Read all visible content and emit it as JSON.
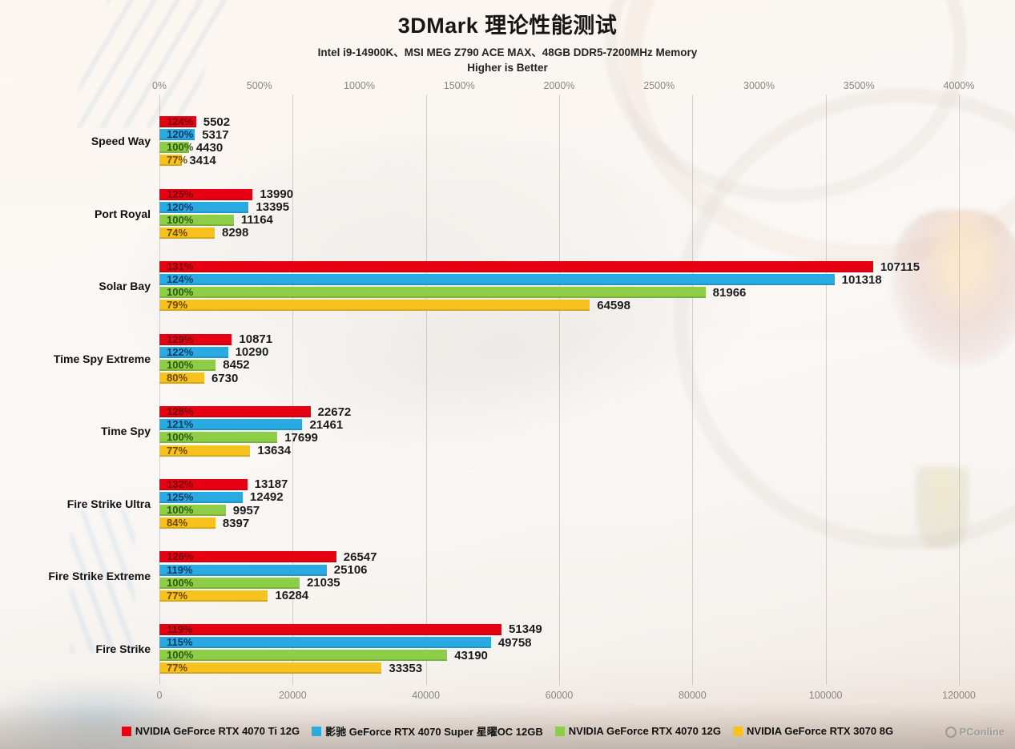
{
  "page": {
    "watermark": "PConline",
    "watermark_icon": "circle-logo"
  },
  "header": {
    "title": "3DMark 理论性能测试",
    "subtitle": "Intel i9-14900K、MSI MEG Z790 ACE MAX、48GB DDR5-7200MHz Memory",
    "note": "Higher is Better"
  },
  "chart_data": {
    "type": "bar",
    "orientation": "horizontal",
    "title": "3DMark 理论性能测试",
    "subtitle": "Intel i9-14900K、MSI MEG Z790 ACE MAX、48GB DDR5-7200MHz Memory",
    "note": "Higher is Better",
    "grid": true,
    "legend_position": "bottom",
    "categories": [
      "Speed Way",
      "Port Royal",
      "Solar Bay",
      "Time Spy Extreme",
      "Time Spy",
      "Fire Strike Ultra",
      "Fire Strike Extreme",
      "Fire Strike"
    ],
    "top_axis": {
      "ticks": [
        "0%",
        "500%",
        "1000%",
        "1500%",
        "2000%",
        "2500%",
        "3000%",
        "3500%",
        "4000%"
      ],
      "min": 0,
      "max": 4000
    },
    "bottom_axis": {
      "ticks": [
        0,
        20000,
        40000,
        60000,
        80000,
        100000,
        120000
      ],
      "min": 0,
      "max": 120000
    },
    "series": [
      {
        "name": "NVIDIA GeForce RTX 4070 Ti 12G",
        "color": "#e60012",
        "label_color": "#70060e",
        "values": [
          5502,
          13990,
          107115,
          10871,
          22672,
          13187,
          26547,
          51349
        ],
        "percents": [
          "124%",
          "125%",
          "131%",
          "129%",
          "128%",
          "132%",
          "126%",
          "119%"
        ]
      },
      {
        "name": "影驰 GeForce RTX 4070 Super 星曜OC 12GB",
        "color": "#29abe2",
        "label_color": "#0c3a66",
        "values": [
          5317,
          13395,
          101318,
          10290,
          21461,
          12492,
          25106,
          49758
        ],
        "percents": [
          "120%",
          "120%",
          "124%",
          "122%",
          "121%",
          "125%",
          "119%",
          "115%"
        ]
      },
      {
        "name": "NVIDIA GeForce RTX 4070 12G",
        "color": "#8dce46",
        "label_color": "#2c5a10",
        "values": [
          4430,
          11164,
          81966,
          8452,
          17699,
          9957,
          21035,
          43190
        ],
        "percents": [
          "100%",
          "100%",
          "100%",
          "100%",
          "100%",
          "100%",
          "100%",
          "100%"
        ]
      },
      {
        "name": "NVIDIA GeForce RTX 3070 8G",
        "color": "#f7c11e",
        "label_color": "#6b4a00",
        "values": [
          3414,
          8298,
          64598,
          6730,
          13634,
          8397,
          16284,
          33353
        ],
        "percents": [
          "77%",
          "74%",
          "79%",
          "80%",
          "77%",
          "84%",
          "77%",
          "77%"
        ]
      }
    ]
  }
}
